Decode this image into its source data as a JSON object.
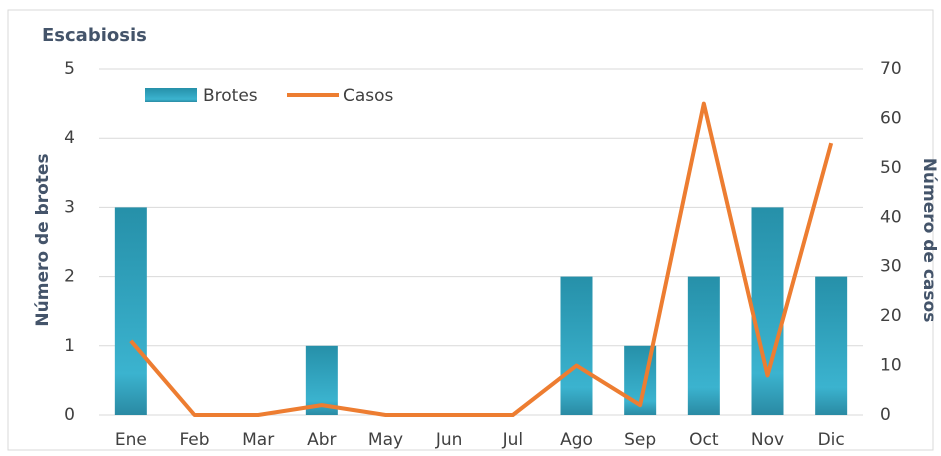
{
  "chart_data": {
    "type": "bar",
    "title": "Escabiosis",
    "categories": [
      "Ene",
      "Feb",
      "Mar",
      "Abr",
      "May",
      "Jun",
      "Jul",
      "Ago",
      "Sep",
      "Oct",
      "Nov",
      "Dic"
    ],
    "series": [
      {
        "name": "Brotes",
        "type": "bar",
        "color": "#2a93ad",
        "values": [
          3,
          0,
          0,
          1,
          0,
          0,
          0,
          2,
          1,
          2,
          3,
          2
        ]
      },
      {
        "name": "Casos",
        "type": "line",
        "axis": "y2",
        "color": "#ed7d31",
        "values": [
          15,
          0,
          0,
          2,
          0,
          0,
          0,
          10,
          2,
          63,
          8,
          55
        ]
      }
    ],
    "ylabel": "Número de brotes",
    "y2label": "Número de casos",
    "ylim": [
      0,
      5
    ],
    "yticks": [
      0,
      1,
      2,
      3,
      4,
      5
    ],
    "y2lim": [
      0,
      70
    ],
    "y2ticks": [
      0,
      10,
      20,
      30,
      40,
      50,
      60,
      70
    ],
    "grid": true,
    "legend": "top-left"
  }
}
